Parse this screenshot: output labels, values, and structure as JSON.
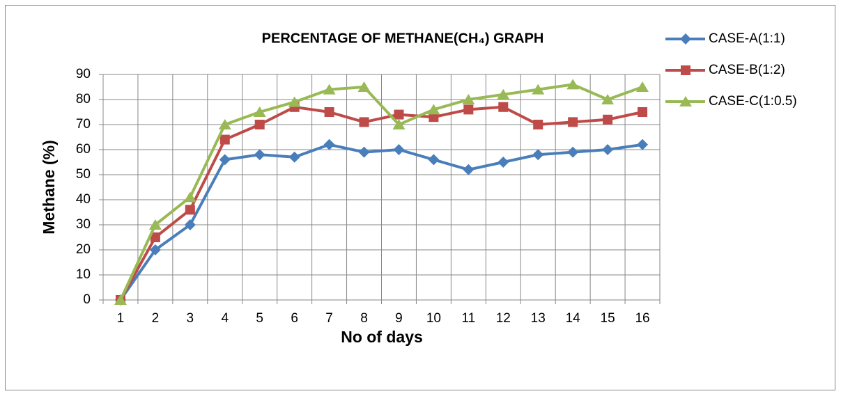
{
  "chart_data": {
    "type": "line",
    "title": "PERCENTAGE OF METHANE(CH₄) GRAPH",
    "x_label": "No of days",
    "y_label": "Methane (%)",
    "categories": [
      1,
      2,
      3,
      4,
      5,
      6,
      7,
      8,
      9,
      10,
      11,
      12,
      13,
      14,
      15,
      16
    ],
    "series": [
      {
        "name": "CASE-A(1:1)",
        "color": "#4a7ebb",
        "marker": "diamond",
        "values": [
          0,
          20,
          30,
          56,
          58,
          57,
          62,
          59,
          60,
          56,
          52,
          55,
          58,
          59,
          60,
          62
        ]
      },
      {
        "name": "CASE-B(1:2)",
        "color": "#be4b48",
        "marker": "square",
        "values": [
          0,
          25,
          36,
          64,
          70,
          77,
          75,
          71,
          74,
          73,
          76,
          77,
          70,
          71,
          72,
          75
        ]
      },
      {
        "name": "CASE-C(1:0.5)",
        "color": "#98b954",
        "marker": "triangle",
        "values": [
          0,
          30,
          41,
          70,
          75,
          79,
          84,
          85,
          70,
          76,
          80,
          82,
          84,
          86,
          80,
          85
        ]
      }
    ],
    "ylim": [
      0,
      90
    ],
    "yticks": [
      0,
      10,
      20,
      30,
      40,
      50,
      60,
      70,
      80,
      90
    ],
    "grid": true,
    "legend": "right"
  }
}
